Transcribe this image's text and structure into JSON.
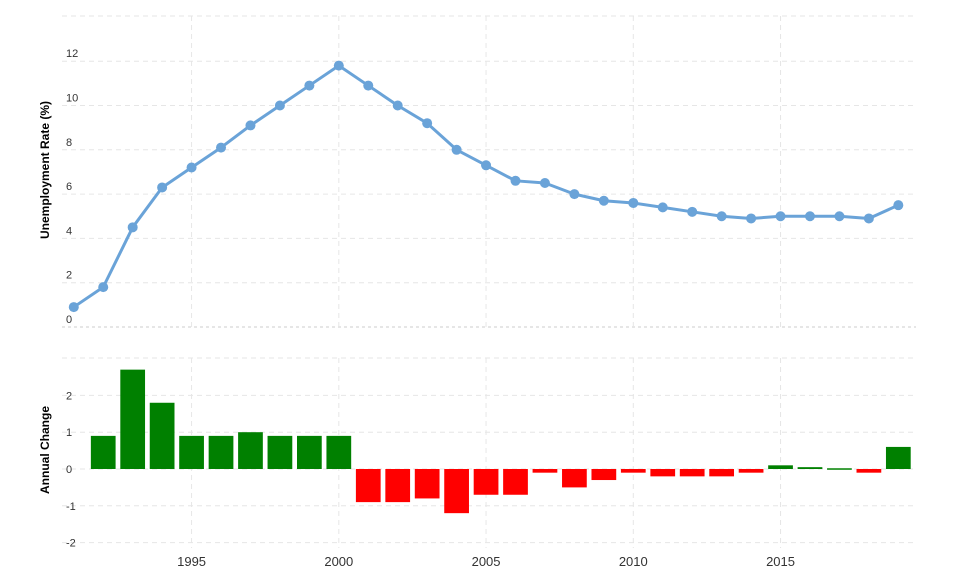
{
  "chart_data": [
    {
      "type": "line",
      "ylabel": "Unemployment Rate (%)",
      "xlabel": "",
      "ylim": [
        0,
        12.5
      ],
      "yticks": [
        0,
        2,
        4,
        6,
        8,
        10,
        12
      ],
      "xticks": [
        1995,
        2000,
        2005,
        2010,
        2015
      ],
      "xlim": [
        1990.6,
        2019.6
      ],
      "grid": true,
      "color": "#6aa3d8",
      "series": [
        {
          "x": [
            1991,
            1992,
            1993,
            1994,
            1995,
            1996,
            1997,
            1998,
            1999,
            2000,
            2001,
            2002,
            2003,
            2004,
            2005,
            2006,
            2007,
            2008,
            2009,
            2010,
            2011,
            2012,
            2013,
            2014,
            2015,
            2016,
            2017,
            2018,
            2019
          ],
          "values": [
            0.9,
            1.8,
            4.5,
            6.3,
            7.2,
            8.1,
            9.1,
            10.0,
            10.9,
            11.8,
            10.9,
            10.0,
            9.2,
            8.0,
            7.3,
            6.6,
            6.5,
            6.0,
            5.7,
            5.6,
            5.4,
            5.2,
            5.0,
            4.9,
            5.0,
            5.0,
            5.0,
            4.9,
            5.5
          ]
        }
      ]
    },
    {
      "type": "bar",
      "ylabel": "Annual Change",
      "xlabel": "",
      "ylim": [
        -2,
        2.8
      ],
      "yticks": [
        -2,
        -1,
        0,
        1,
        2
      ],
      "xticks": [
        1995,
        2000,
        2005,
        2010,
        2015
      ],
      "xlim": [
        1990.6,
        2019.6
      ],
      "grid": true,
      "positive_color": "#008000",
      "negative_color": "#ff0000",
      "series": [
        {
          "x": [
            1992,
            1993,
            1994,
            1995,
            1996,
            1997,
            1998,
            1999,
            2000,
            2001,
            2002,
            2003,
            2004,
            2005,
            2006,
            2007,
            2008,
            2009,
            2010,
            2011,
            2012,
            2013,
            2014,
            2015,
            2016,
            2017,
            2018,
            2019
          ],
          "values": [
            0.9,
            2.7,
            1.8,
            0.9,
            0.9,
            1.0,
            0.9,
            0.9,
            0.9,
            -0.9,
            -0.9,
            -0.8,
            -1.2,
            -0.7,
            -0.7,
            -0.1,
            -0.5,
            -0.3,
            -0.1,
            -0.2,
            -0.2,
            -0.2,
            -0.1,
            0.1,
            0.05,
            0.02,
            -0.1,
            0.6
          ]
        }
      ]
    }
  ]
}
